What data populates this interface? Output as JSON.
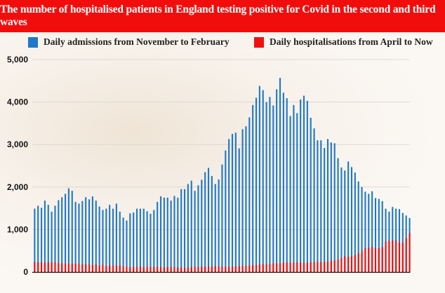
{
  "chart_data": {
    "type": "bar",
    "title": "The number of hospitalised patients in England testing positive for Covid in the second and third waves",
    "xlabel": "",
    "ylabel": "",
    "ylim": [
      0,
      5000
    ],
    "yticks": [
      0,
      1000,
      2000,
      3000,
      4000,
      5000
    ],
    "ytick_labels": [
      "0",
      "1,000",
      "2,000",
      "3,000",
      "4,000",
      "5,000"
    ],
    "grid": true,
    "legend_placement": "top",
    "overlay": true,
    "series": [
      {
        "name": "Daily admissions from November to February",
        "color": "#1f78c8",
        "values": [
          1490,
          1560,
          1510,
          1680,
          1580,
          1420,
          1560,
          1690,
          1760,
          1840,
          1970,
          1910,
          1650,
          1610,
          1670,
          1760,
          1710,
          1780,
          1680,
          1540,
          1460,
          1490,
          1580,
          1490,
          1610,
          1420,
          1280,
          1210,
          1380,
          1400,
          1490,
          1490,
          1490,
          1430,
          1370,
          1460,
          1650,
          1780,
          1750,
          1750,
          1680,
          1790,
          1750,
          1950,
          1950,
          2070,
          2150,
          1910,
          2040,
          2170,
          2350,
          2450,
          2260,
          2070,
          2180,
          2530,
          2860,
          3130,
          3250,
          3280,
          2910,
          3360,
          3430,
          3640,
          3930,
          4100,
          4380,
          4280,
          4000,
          4120,
          3920,
          4300,
          4570,
          4220,
          4090,
          3670,
          3930,
          3740,
          4060,
          4150,
          4030,
          3630,
          3380,
          3100,
          3100,
          2920,
          3130,
          3050,
          3030,
          2680,
          2460,
          2390,
          2600,
          2470,
          2340,
          2130,
          2000,
          1890,
          1840,
          1900,
          1740,
          1720,
          1670,
          1490,
          1420,
          1530,
          1490,
          1480,
          1390,
          1330,
          1270
        ]
      },
      {
        "name": "Daily hospitalisations from April to Now",
        "color": "#ee1111",
        "values": [
          230,
          235,
          230,
          220,
          235,
          225,
          235,
          210,
          205,
          195,
          200,
          205,
          195,
          200,
          185,
          180,
          175,
          165,
          185,
          150,
          175,
          140,
          160,
          150,
          155,
          160,
          135,
          125,
          120,
          120,
          110,
          130,
          120,
          115,
          125,
          120,
          120,
          115,
          110,
          120,
          120,
          115,
          110,
          105,
          100,
          110,
          120,
          120,
          120,
          125,
          130,
          130,
          130,
          135,
          130,
          135,
          125,
          120,
          130,
          135,
          140,
          145,
          150,
          150,
          165,
          170,
          180,
          185,
          190,
          195,
          200,
          205,
          210,
          220,
          225,
          225,
          220,
          230,
          225,
          215,
          220,
          230,
          240,
          245,
          235,
          240,
          250,
          260,
          270,
          300,
          330,
          370,
          360,
          380,
          400,
          440,
          500,
          560,
          570,
          600,
          560,
          560,
          590,
          720,
          735,
          740,
          750,
          700,
          690,
          800,
          920
        ]
      }
    ]
  }
}
